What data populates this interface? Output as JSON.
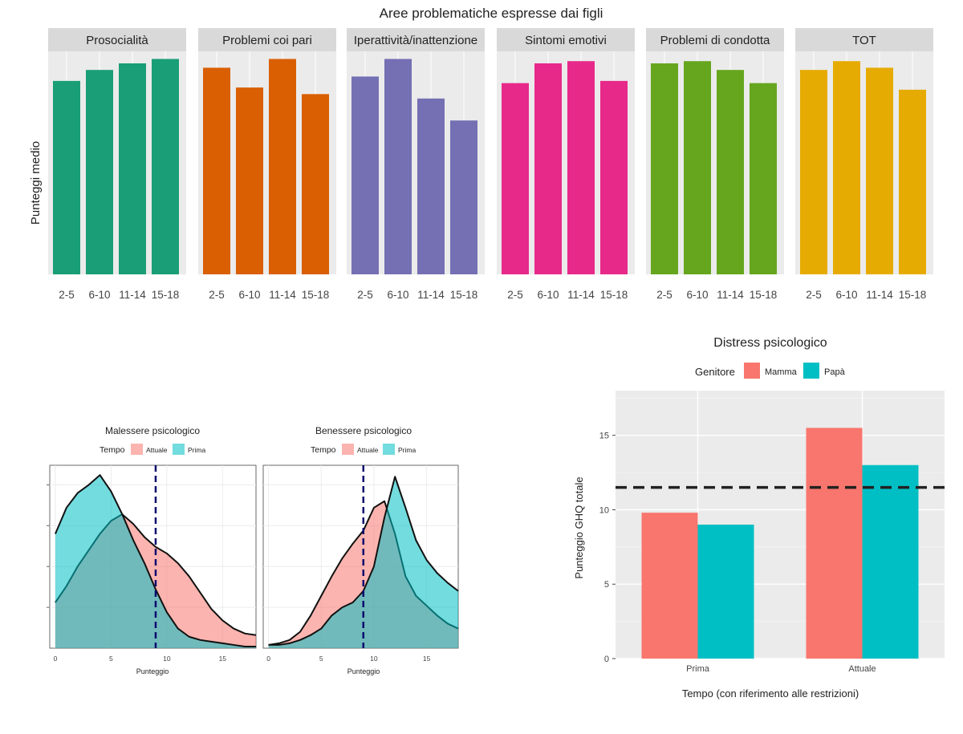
{
  "chart_data": [
    {
      "type": "bar",
      "title": "Aree problematiche espresse dai figli",
      "ylabel": "Punteggi medio",
      "xlabel": "",
      "ylim": [
        0,
        1
      ],
      "categories": [
        "2-5",
        "6-10",
        "11-14",
        "15-18"
      ],
      "panels": [
        {
          "name": "Prosocialità",
          "color": "#1a9e77",
          "values": [
            0.88,
            0.93,
            0.96,
            0.98
          ]
        },
        {
          "name": "Problemi coi pari",
          "color": "#d95f02",
          "values": [
            0.94,
            0.85,
            0.98,
            0.82
          ]
        },
        {
          "name": "Iperattività/inattenzione",
          "color": "#7570b3",
          "values": [
            0.9,
            0.98,
            0.8,
            0.7
          ]
        },
        {
          "name": "Sintomi emotivi",
          "color": "#e7298a",
          "values": [
            0.87,
            0.96,
            0.97,
            0.88
          ]
        },
        {
          "name": "Problemi di condotta",
          "color": "#66a61e",
          "values": [
            0.96,
            0.97,
            0.93,
            0.87
          ]
        },
        {
          "name": "TOT",
          "color": "#e6ab02",
          "values": [
            0.93,
            0.97,
            0.94,
            0.84
          ]
        }
      ]
    },
    {
      "type": "area",
      "title": "Malessere psicologico",
      "xlabel": "Punteggio",
      "legend_title": "Tempo",
      "legend": [
        {
          "name": "Attuale",
          "color": "#f8766d"
        },
        {
          "name": "Prima",
          "color": "#00bfc4"
        }
      ],
      "xlim": [
        -0.5,
        18
      ],
      "xticks": [
        0,
        5,
        10,
        15
      ],
      "vline": 9,
      "series": [
        {
          "name": "Attuale",
          "x": [
            0,
            1,
            2,
            3,
            4,
            5,
            6,
            7,
            8,
            9,
            10,
            11,
            12,
            13,
            14,
            15,
            16,
            17,
            18
          ],
          "y": [
            0.28,
            0.38,
            0.5,
            0.6,
            0.7,
            0.78,
            0.82,
            0.76,
            0.68,
            0.62,
            0.58,
            0.52,
            0.44,
            0.34,
            0.24,
            0.17,
            0.12,
            0.09,
            0.08
          ]
        },
        {
          "name": "Prima",
          "x": [
            0,
            1,
            2,
            3,
            4,
            5,
            6,
            7,
            8,
            9,
            10,
            11,
            12,
            13,
            14,
            15,
            16,
            17,
            18
          ],
          "y": [
            0.7,
            0.86,
            0.95,
            1.0,
            1.06,
            0.96,
            0.82,
            0.66,
            0.52,
            0.36,
            0.22,
            0.12,
            0.07,
            0.05,
            0.04,
            0.03,
            0.02,
            0.01,
            0.01
          ]
        }
      ]
    },
    {
      "type": "area",
      "title": "Benessere psicologico",
      "xlabel": "Punteggio",
      "legend_title": "Tempo",
      "legend": [
        {
          "name": "Attuale",
          "color": "#f8766d"
        },
        {
          "name": "Prima",
          "color": "#00bfc4"
        }
      ],
      "xlim": [
        -0.5,
        18
      ],
      "xticks": [
        0,
        5,
        10,
        15
      ],
      "vline": 9,
      "series": [
        {
          "name": "Attuale",
          "x": [
            0,
            1,
            2,
            3,
            4,
            5,
            6,
            7,
            8,
            9,
            10,
            11,
            12,
            13,
            14,
            15,
            16,
            17,
            18
          ],
          "y": [
            0.02,
            0.03,
            0.05,
            0.1,
            0.2,
            0.32,
            0.44,
            0.55,
            0.64,
            0.72,
            0.86,
            0.9,
            0.7,
            0.44,
            0.32,
            0.26,
            0.2,
            0.15,
            0.12
          ]
        },
        {
          "name": "Prima",
          "x": [
            0,
            1,
            2,
            3,
            4,
            5,
            6,
            7,
            8,
            9,
            10,
            11,
            12,
            13,
            14,
            15,
            16,
            17,
            18
          ],
          "y": [
            0.02,
            0.02,
            0.03,
            0.05,
            0.08,
            0.12,
            0.2,
            0.25,
            0.28,
            0.35,
            0.5,
            0.8,
            1.05,
            0.86,
            0.66,
            0.54,
            0.46,
            0.4,
            0.35
          ]
        }
      ]
    },
    {
      "type": "bar",
      "title": "Distress psicologico",
      "xlabel": "Tempo (con riferimento alle restrizioni)",
      "ylabel": "Punteggio GHQ totale",
      "legend_title": "Genitore",
      "ylim": [
        0,
        18
      ],
      "yticks": [
        0,
        5,
        10,
        15
      ],
      "categories": [
        "Prima",
        "Attuale"
      ],
      "hline": 11.5,
      "series": [
        {
          "name": "Mamma",
          "color": "#f8766d",
          "values": [
            9.8,
            15.5
          ]
        },
        {
          "name": "Papà",
          "color": "#00bfc4",
          "values": [
            9.0,
            13.0
          ]
        }
      ]
    }
  ]
}
